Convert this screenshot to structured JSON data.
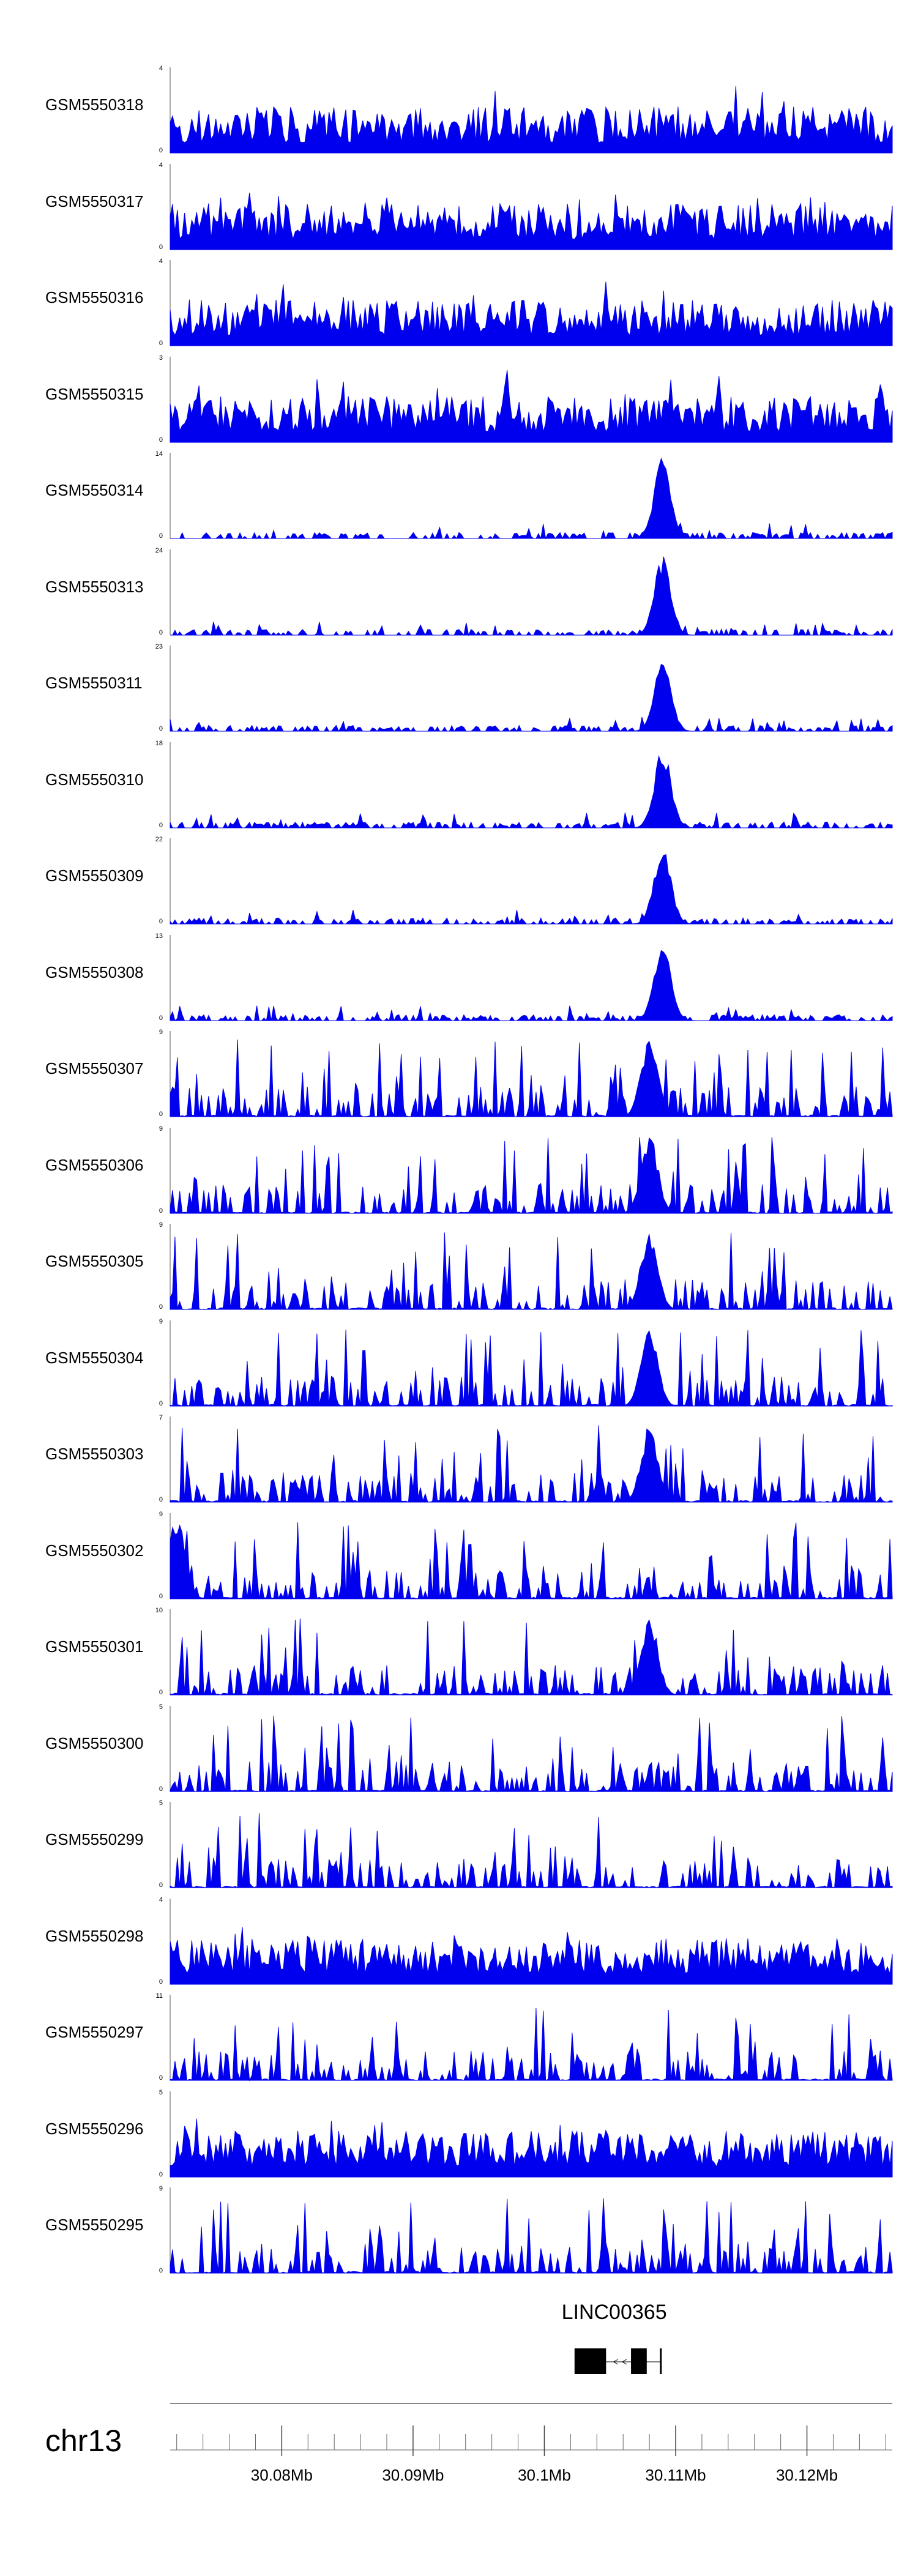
{
  "chart_data": {
    "type": "area",
    "chromosome": "chr13",
    "xlim": [
      30.0715,
      30.1265
    ],
    "x_unit": "Mb",
    "color": "#0000ee",
    "tracks": [
      {
        "name": "GSM5550318",
        "ymax": "4",
        "ymin": "0",
        "profile": "noisy",
        "peaks": []
      },
      {
        "name": "GSM5550317",
        "ymax": "4",
        "ymin": "0",
        "profile": "noisy",
        "peaks": []
      },
      {
        "name": "GSM5550316",
        "ymax": "4",
        "ymin": "0",
        "profile": "noisy",
        "peaks": []
      },
      {
        "name": "GSM5550315",
        "ymax": "3",
        "ymin": "0",
        "profile": "noisy",
        "peaks": []
      },
      {
        "name": "GSM5550314",
        "ymax": "14",
        "ymin": "0",
        "profile": "sparse",
        "peaks": [
          [
            30.109,
            0.95
          ]
        ]
      },
      {
        "name": "GSM5550313",
        "ymax": "24",
        "ymin": "0",
        "profile": "sparse",
        "peaks": [
          [
            30.109,
            0.93
          ]
        ]
      },
      {
        "name": "GSM5550311",
        "ymax": "23",
        "ymin": "0",
        "profile": "sparse",
        "peaks": [
          [
            30.109,
            0.9
          ]
        ]
      },
      {
        "name": "GSM5550310",
        "ymax": "18",
        "ymin": "0",
        "profile": "sparse",
        "peaks": [
          [
            30.109,
            0.95
          ]
        ]
      },
      {
        "name": "GSM5550309",
        "ymax": "22",
        "ymin": "0",
        "profile": "sparse",
        "peaks": [
          [
            30.109,
            0.95
          ]
        ]
      },
      {
        "name": "GSM5550308",
        "ymax": "13",
        "ymin": "0",
        "profile": "sparse",
        "peaks": [
          [
            30.109,
            0.95
          ]
        ]
      },
      {
        "name": "GSM5550307",
        "ymax": "9",
        "ymin": "0",
        "profile": "spiky",
        "peaks": [
          [
            30.108,
            0.95
          ]
        ]
      },
      {
        "name": "GSM5550306",
        "ymax": "9",
        "ymin": "0",
        "profile": "spiky",
        "peaks": [
          [
            30.108,
            0.95
          ]
        ]
      },
      {
        "name": "GSM5550305",
        "ymax": "9",
        "ymin": "0",
        "profile": "spiky",
        "peaks": [
          [
            30.108,
            0.95
          ]
        ]
      },
      {
        "name": "GSM5550304",
        "ymax": "9",
        "ymin": "0",
        "profile": "spiky",
        "peaks": [
          [
            30.108,
            0.95
          ]
        ]
      },
      {
        "name": "GSM5550303",
        "ymax": "7",
        "ymin": "0",
        "profile": "spiky",
        "peaks": [
          [
            30.108,
            0.9
          ]
        ]
      },
      {
        "name": "GSM5550302",
        "ymax": "9",
        "ymin": "0",
        "profile": "spiky",
        "peaks": [
          [
            30.072,
            0.95
          ]
        ]
      },
      {
        "name": "GSM5550301",
        "ymax": "10",
        "ymin": "0",
        "profile": "spiky",
        "peaks": [
          [
            30.108,
            0.95
          ]
        ]
      },
      {
        "name": "GSM5550300",
        "ymax": "5",
        "ymin": "0",
        "profile": "spiky",
        "peaks": []
      },
      {
        "name": "GSM5550299",
        "ymax": "5",
        "ymin": "0",
        "profile": "spiky",
        "peaks": []
      },
      {
        "name": "GSM5550298",
        "ymax": "4",
        "ymin": "0",
        "profile": "noisy",
        "peaks": []
      },
      {
        "name": "GSM5550297",
        "ymax": "11",
        "ymin": "0",
        "profile": "spiky",
        "peaks": []
      },
      {
        "name": "GSM5550296",
        "ymax": "5",
        "ymin": "0",
        "profile": "noisy",
        "peaks": []
      },
      {
        "name": "GSM5550295",
        "ymax": "9",
        "ymin": "0",
        "profile": "spiky",
        "peaks": []
      }
    ],
    "gene": {
      "name": "LINC00365",
      "strand": "-",
      "start": 30.1023,
      "end": 30.1089,
      "exons": [
        [
          30.1023,
          30.1047
        ],
        [
          30.1066,
          30.1078
        ],
        [
          30.1088,
          30.1089
        ]
      ]
    },
    "axis": {
      "ticks": [
        30.08,
        30.09,
        30.1,
        30.11,
        30.12
      ],
      "tick_labels": [
        "30.08Mb",
        "30.09Mb",
        "30.1Mb",
        "30.11Mb",
        "30.12Mb"
      ],
      "minor_step": 0.002
    }
  }
}
